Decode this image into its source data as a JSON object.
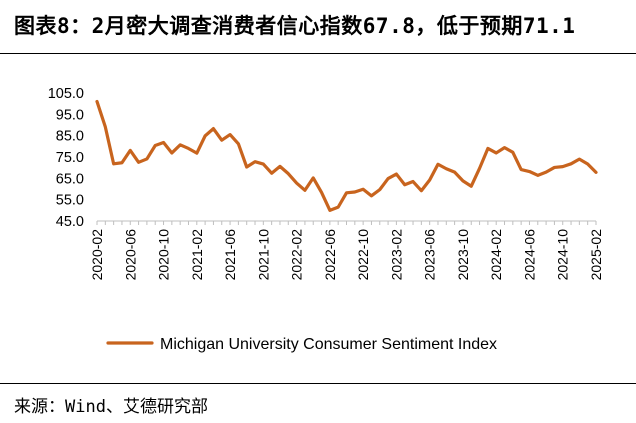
{
  "header": {
    "title": "图表8：2月密大调查消费者信心指数67.8，低于预期71.1"
  },
  "footer": {
    "source": "来源：Wind、艾德研究部"
  },
  "chart_data": {
    "type": "line",
    "title": "图表8：2月密大调查消费者信心指数67.8，低于预期71.1",
    "xlabel": "",
    "ylabel": "",
    "ylim": [
      45.0,
      105.0
    ],
    "yticks": [
      "45.0",
      "55.0",
      "65.0",
      "75.0",
      "85.0",
      "95.0",
      "105.0"
    ],
    "ytick_values": [
      45,
      55,
      65,
      75,
      85,
      95,
      105
    ],
    "grid": false,
    "legend_position": "bottom-center",
    "x": [
      "2020-02",
      "2020-03",
      "2020-04",
      "2020-05",
      "2020-06",
      "2020-07",
      "2020-08",
      "2020-09",
      "2020-10",
      "2020-11",
      "2020-12",
      "2021-01",
      "2021-02",
      "2021-03",
      "2021-04",
      "2021-05",
      "2021-06",
      "2021-07",
      "2021-08",
      "2021-09",
      "2021-10",
      "2021-11",
      "2021-12",
      "2022-01",
      "2022-02",
      "2022-03",
      "2022-04",
      "2022-05",
      "2022-06",
      "2022-07",
      "2022-08",
      "2022-09",
      "2022-10",
      "2022-11",
      "2022-12",
      "2023-01",
      "2023-02",
      "2023-03",
      "2023-04",
      "2023-05",
      "2023-06",
      "2023-07",
      "2023-08",
      "2023-09",
      "2023-10",
      "2023-11",
      "2023-12",
      "2024-01",
      "2024-02",
      "2024-03",
      "2024-04",
      "2024-05",
      "2024-06",
      "2024-07",
      "2024-08",
      "2024-09",
      "2024-10",
      "2024-11",
      "2024-12",
      "2025-01",
      "2025-02"
    ],
    "xtick_labels": [
      "2020-02",
      "2020-06",
      "2020-10",
      "2021-02",
      "2021-06",
      "2021-10",
      "2022-02",
      "2022-06",
      "2022-10",
      "2023-02",
      "2023-06",
      "2023-10",
      "2024-02",
      "2024-06",
      "2024-10",
      "2025-02"
    ],
    "series": [
      {
        "name": "Michigan University Consumer Sentiment Index",
        "color": "#C8641E",
        "values": [
          101.0,
          89.1,
          71.8,
          72.3,
          78.1,
          72.5,
          74.1,
          80.4,
          81.8,
          76.9,
          80.7,
          79.0,
          76.8,
          84.9,
          88.3,
          82.9,
          85.5,
          81.2,
          70.3,
          72.8,
          71.7,
          67.4,
          70.6,
          67.2,
          62.8,
          59.4,
          65.2,
          58.4,
          50.0,
          51.5,
          58.2,
          58.6,
          59.9,
          56.8,
          59.7,
          64.9,
          67.0,
          62.0,
          63.5,
          59.2,
          64.2,
          71.6,
          69.5,
          67.9,
          63.8,
          61.3,
          69.7,
          79.0,
          76.9,
          79.4,
          77.2,
          69.1,
          68.2,
          66.4,
          67.9,
          70.1,
          70.5,
          71.8,
          74.0,
          71.7,
          67.8
        ]
      }
    ]
  }
}
